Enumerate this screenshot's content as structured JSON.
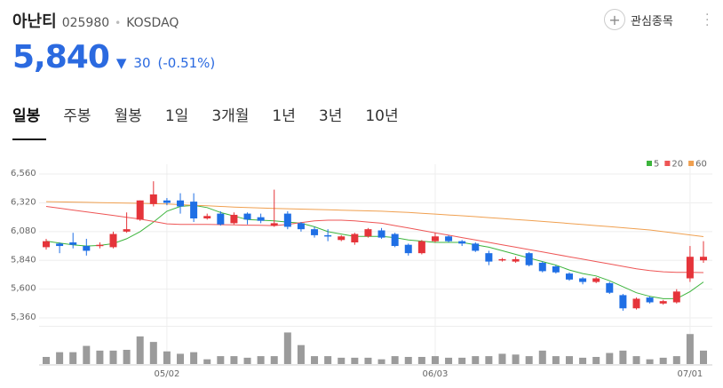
{
  "header": {
    "name": "아난티",
    "code": "025980",
    "market": "KOSDAQ",
    "price": "5,840",
    "change": "30",
    "change_pct": "(-0.51%)",
    "watch_button": "관심종목"
  },
  "tabs": [
    "일봉",
    "주봉",
    "월봉",
    "1일",
    "3개월",
    "1년",
    "3년",
    "10년"
  ],
  "chart_data": {
    "type": "candlestick",
    "categories": [
      null,
      null,
      null,
      null,
      null,
      null,
      null,
      null,
      null,
      "05/02",
      null,
      null,
      null,
      null,
      null,
      null,
      null,
      null,
      null,
      null,
      null,
      null,
      null,
      null,
      null,
      null,
      null,
      null,
      null,
      "06/03",
      null,
      null,
      null,
      null,
      null,
      null,
      null,
      null,
      null,
      null,
      null,
      null,
      null,
      null,
      null,
      null,
      null,
      null,
      "07/01",
      null
    ],
    "open": [
      5950,
      5980,
      5990,
      5960,
      5960,
      5950,
      6080,
      6180,
      6310,
      6340,
      6340,
      6330,
      6190,
      6230,
      6150,
      6230,
      6200,
      6130,
      6230,
      6150,
      6100,
      6050,
      6010,
      5990,
      6040,
      6090,
      6060,
      5970,
      5900,
      6000,
      6040,
      6000,
      5980,
      5900,
      5840,
      5830,
      5900,
      5820,
      5790,
      5730,
      5690,
      5660,
      5650,
      5550,
      5440,
      5530,
      5480,
      5490,
      5690,
      5840
    ],
    "high": [
      6020,
      5990,
      6070,
      6020,
      5990,
      6080,
      6240,
      6340,
      6500,
      6360,
      6400,
      6400,
      6230,
      6250,
      6240,
      6240,
      6230,
      6430,
      6250,
      6160,
      6120,
      6100,
      6050,
      6070,
      6110,
      6110,
      6070,
      5980,
      6010,
      6070,
      6050,
      6010,
      5990,
      5920,
      5860,
      5870,
      5910,
      5830,
      5800,
      5740,
      5700,
      5700,
      5660,
      5560,
      5530,
      5540,
      5510,
      5600,
      5960,
      6000
    ],
    "low": [
      5930,
      5900,
      5940,
      5880,
      5940,
      5940,
      6070,
      6170,
      6290,
      6300,
      6230,
      6160,
      6180,
      6130,
      6140,
      6140,
      6150,
      6120,
      6100,
      6080,
      6030,
      6000,
      6000,
      5970,
      6030,
      6020,
      5950,
      5880,
      5890,
      5990,
      5990,
      5960,
      5910,
      5800,
      5830,
      5820,
      5790,
      5740,
      5730,
      5670,
      5640,
      5650,
      5560,
      5420,
      5430,
      5480,
      5470,
      5480,
      5660,
      5820
    ],
    "close": [
      6000,
      5960,
      5970,
      5920,
      5970,
      6060,
      6100,
      6340,
      6390,
      6320,
      6290,
      6190,
      6210,
      6140,
      6220,
      6180,
      6170,
      6150,
      6120,
      6100,
      6050,
      6040,
      6040,
      6060,
      6100,
      6030,
      5960,
      5900,
      6000,
      6040,
      6000,
      5980,
      5920,
      5830,
      5850,
      5850,
      5800,
      5750,
      5740,
      5680,
      5660,
      5690,
      5570,
      5440,
      5520,
      5490,
      5500,
      5580,
      5870,
      5870
    ],
    "up_color": "#e5343a",
    "down_color": "#1f6fe5",
    "volume": [
      9,
      15,
      15,
      23,
      17,
      17,
      18,
      35,
      28,
      16,
      13,
      15,
      6,
      10,
      10,
      8,
      10,
      10,
      40,
      24,
      10,
      10,
      8,
      8,
      8,
      6,
      10,
      9,
      9,
      10,
      8,
      8,
      10,
      10,
      13,
      12,
      10,
      17,
      10,
      10,
      8,
      9,
      14,
      17,
      10,
      6,
      8,
      10,
      38,
      17
    ],
    "volume_color": "#9b9b9b",
    "vlim": [
      0,
      45
    ],
    "series": [
      {
        "name": "5",
        "color": "#3cb43c",
        "values": [
          6000,
          5985,
          5970,
          5960,
          5965,
          5980,
          6020,
          6080,
          6160,
          6250,
          6290,
          6300,
          6280,
          6240,
          6210,
          6180,
          6175,
          6170,
          6160,
          6150,
          6120,
          6080,
          6060,
          6040,
          6040,
          6040,
          6030,
          6010,
          6000,
          5990,
          5990,
          5990,
          5970,
          5950,
          5920,
          5890,
          5860,
          5830,
          5800,
          5760,
          5730,
          5710,
          5670,
          5620,
          5570,
          5540,
          5520,
          5520,
          5580,
          5660
        ]
      },
      {
        "name": "20",
        "color": "#ee5555",
        "values": [
          6290,
          6275,
          6260,
          6245,
          6230,
          6215,
          6200,
          6185,
          6165,
          6145,
          6140,
          6140,
          6140,
          6138,
          6136,
          6134,
          6132,
          6130,
          6140,
          6155,
          6170,
          6175,
          6175,
          6170,
          6160,
          6150,
          6130,
          6110,
          6090,
          6070,
          6050,
          6030,
          6010,
          5990,
          5970,
          5950,
          5930,
          5910,
          5890,
          5870,
          5850,
          5830,
          5810,
          5790,
          5770,
          5755,
          5745,
          5740,
          5740,
          5738
        ]
      },
      {
        "name": "60",
        "color": "#f0a050",
        "values": [
          6330,
          6328,
          6326,
          6324,
          6322,
          6320,
          6318,
          6316,
          6313,
          6310,
          6305,
          6300,
          6295,
          6290,
          6285,
          6280,
          6277,
          6274,
          6271,
          6268,
          6265,
          6262,
          6259,
          6256,
          6253,
          6250,
          6245,
          6240,
          6233,
          6226,
          6219,
          6212,
          6205,
          6197,
          6189,
          6181,
          6173,
          6165,
          6157,
          6148,
          6139,
          6130,
          6121,
          6112,
          6103,
          6094,
          6080,
          6066,
          6052,
          6038
        ]
      }
    ],
    "ylim": [
      5290,
      6590
    ],
    "yticks": [
      {
        "value": 6560,
        "label": "6,560"
      },
      {
        "value": 6320,
        "label": "6,320"
      },
      {
        "value": 6080,
        "label": "6,080"
      },
      {
        "value": 5840,
        "label": "5,840"
      },
      {
        "value": 5600,
        "label": "5,600"
      },
      {
        "value": 5360,
        "label": "5,360"
      }
    ],
    "grid": true,
    "legend": "top-right"
  }
}
